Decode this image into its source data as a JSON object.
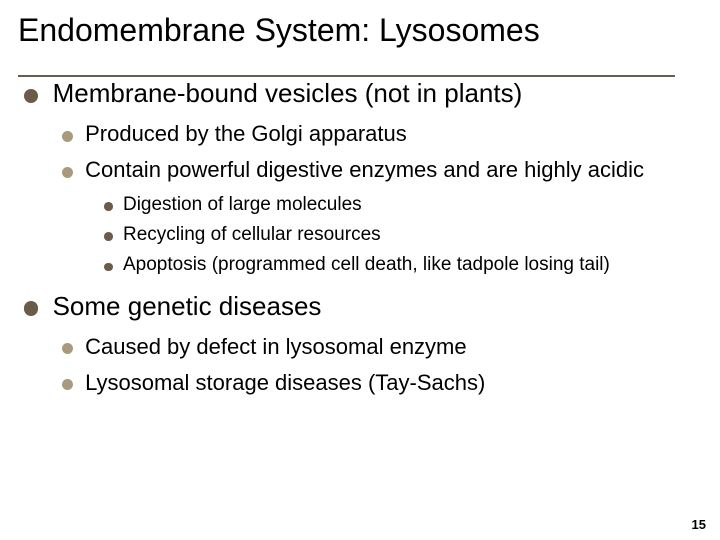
{
  "colors": {
    "background": "#ffffff",
    "text": "#000000",
    "rule": "#6b5b4a",
    "bullet_lvl1": "#6b5b4a",
    "bullet_lvl2": "#a89a7f",
    "bullet_lvl3": "#6b5b4a"
  },
  "typography": {
    "font_family": "Arial",
    "title_size_pt": 32,
    "lvl1_size_pt": 26,
    "lvl2_size_pt": 22,
    "lvl3_size_pt": 19,
    "pagenum_size_pt": 13
  },
  "title": "Endomembrane System: Lysosomes",
  "bullets": {
    "b1": "Membrane-bound vesicles (not in plants)",
    "b1_1": "Produced by the Golgi apparatus",
    "b1_2": "Contain powerful digestive enzymes and are highly acidic",
    "b1_2_1": "Digestion of large molecules",
    "b1_2_2": "Recycling of cellular resources",
    "b1_2_3": "Apoptosis (programmed cell death, like tadpole losing tail)",
    "b2": "Some genetic diseases",
    "b2_1": "Caused by defect in lysosomal enzyme",
    "b2_2": "Lysosomal storage diseases (Tay-Sachs)"
  },
  "page_number": "15"
}
